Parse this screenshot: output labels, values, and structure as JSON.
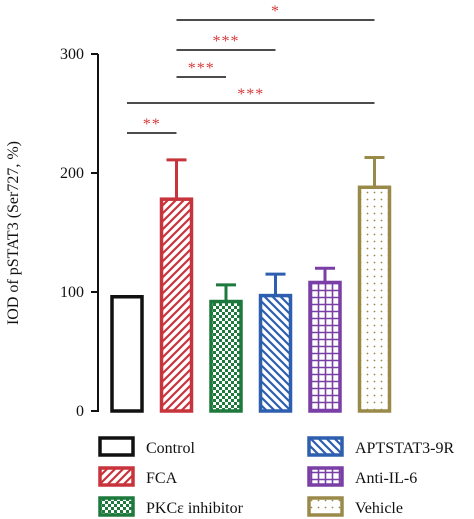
{
  "chart_data": {
    "type": "bar",
    "title": "",
    "xlabel": "",
    "ylabel": "IOD of pSTAT3 (Ser727, %)",
    "ylim": [
      0,
      300
    ],
    "yticks": [
      0,
      100,
      200,
      300
    ],
    "grid": false,
    "legend_position": "bottom",
    "categories": [
      "Control",
      "FCA",
      "PKCε inhibitor",
      "APTSTAT3-9R",
      "Anti-IL-6",
      "Vehicle"
    ],
    "values": [
      96,
      178,
      92,
      97,
      108,
      188
    ],
    "errors": [
      0,
      33,
      14,
      18,
      12,
      25
    ],
    "colors": [
      "#111111",
      "#c8343b",
      "#1e7a3c",
      "#2d5fae",
      "#7a3fa6",
      "#9a8a4a"
    ],
    "patterns": [
      "solid-outline",
      "diagonal",
      "checker",
      "backslash",
      "grid",
      "dots"
    ],
    "significance": [
      {
        "from": 1,
        "to": 5,
        "label": "*"
      },
      {
        "from": 1,
        "to": 3,
        "label": "***"
      },
      {
        "from": 1,
        "to": 2,
        "label": "***"
      },
      {
        "from": 0,
        "to": 5,
        "label": "***"
      },
      {
        "from": 0,
        "to": 1,
        "label": "**"
      }
    ],
    "significance_color": "#d63a3a"
  }
}
